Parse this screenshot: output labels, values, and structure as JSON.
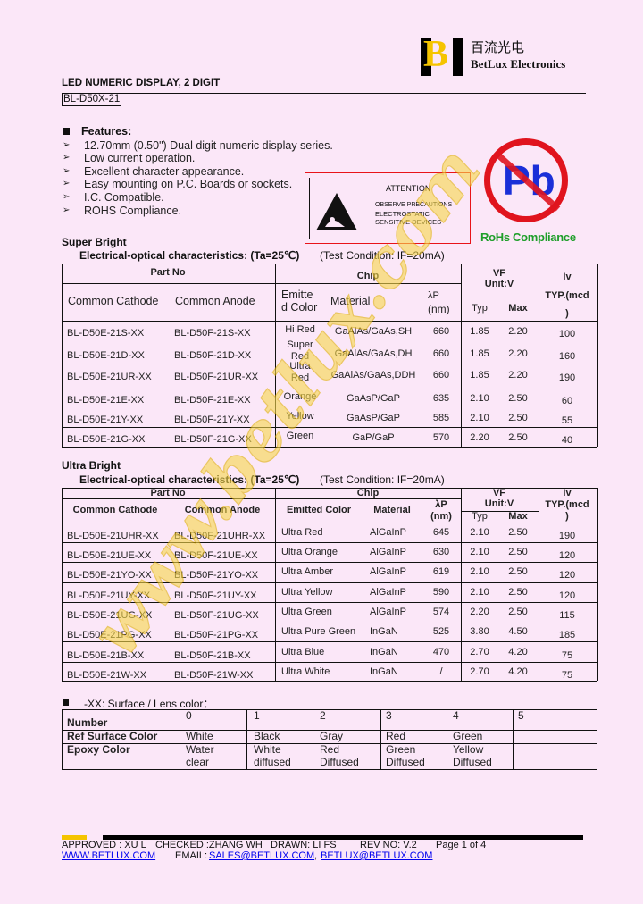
{
  "header": {
    "logo_letter": "B",
    "company_cn": "百流光电",
    "company_en": "BetLux Electronics",
    "doc_title": "LED NUMERIC DISPLAY, 2 DIGIT",
    "part_family": "BL-D50X-21"
  },
  "features": {
    "title": "Features:",
    "items": [
      "12.70mm (0.50\") Dual digit numeric display series.",
      "Low current operation.",
      "Excellent character appearance.",
      "Easy mounting on P.C. Boards or sockets.",
      "I.C. Compatible.",
      "ROHS Compliance."
    ]
  },
  "attention": {
    "title": "ATTENTION",
    "line1": "OBSERVE PRECAUTIONS",
    "line2": "ELECTROSTATIC",
    "line3": "SENSITIVE DEVICES"
  },
  "rohs": {
    "symbol": "Pb",
    "label": "RoHs Compliance"
  },
  "colors": {
    "background": "#fbe7f8",
    "logo_yellow": "#f5c400",
    "attention_border": "#e8141a",
    "pb_red": "#e0141e",
    "pb_blue": "#1a2fd8",
    "rohs_green": "#1e9e2a",
    "watermark": "#f2c400",
    "link": "#0000ee"
  },
  "super_bright": {
    "title": "Super Bright",
    "subtitle": "Electrical-optical characteristics: (Ta=25℃)",
    "condition": "(Test Condition: IF=20mA)",
    "headers": {
      "part_no": "Part No",
      "chip": "Chip",
      "vf": "VF",
      "vf_unit": "Unit:V",
      "iv": "Iv",
      "iv_unit": "TYP.(mcd",
      "iv_unit_end": ")",
      "cathode": "Common Cathode",
      "anode": "Common Anode",
      "emitted_1": "Emitte",
      "emitted_2": "d Color",
      "material": "Material",
      "lambda": "λP",
      "lambda_unit": "(nm)",
      "typ": "Typ",
      "max": "Max"
    },
    "rows": [
      {
        "cathode": "BL-D50E-21S-XX",
        "anode": "BL-D50F-21S-XX",
        "color": [
          "Hi Red"
        ],
        "material": "GaAlAs/GaAs,SH",
        "lambda": "660",
        "typ": "1.85",
        "max": "2.20",
        "iv": "100"
      },
      {
        "cathode": "BL-D50E-21D-XX",
        "anode": "BL-D50F-21D-XX",
        "color": [
          "Super",
          "Red"
        ],
        "material": "GaAlAs/GaAs,DH",
        "lambda": "660",
        "typ": "1.85",
        "max": "2.20",
        "iv": "160"
      },
      {
        "cathode": "BL-D50E-21UR-XX",
        "anode": "BL-D50F-21UR-XX",
        "color": [
          "Ultra",
          "Red"
        ],
        "material": "GaAlAs/GaAs,DDH",
        "lambda": "660",
        "typ": "1.85",
        "max": "2.20",
        "iv": "190"
      },
      {
        "cathode": "BL-D50E-21E-XX",
        "anode": "BL-D50F-21E-XX",
        "color": [
          "Orange"
        ],
        "material": "GaAsP/GaP",
        "lambda": "635",
        "typ": "2.10",
        "max": "2.50",
        "iv": "60"
      },
      {
        "cathode": "BL-D50E-21Y-XX",
        "anode": "BL-D50F-21Y-XX",
        "color": [
          "Yellow"
        ],
        "material": "GaAsP/GaP",
        "lambda": "585",
        "typ": "2.10",
        "max": "2.50",
        "iv": "55"
      },
      {
        "cathode": "BL-D50E-21G-XX",
        "anode": "BL-D50F-21G-XX",
        "color": [
          "Green"
        ],
        "material": "GaP/GaP",
        "lambda": "570",
        "typ": "2.20",
        "max": "2.50",
        "iv": "40"
      }
    ]
  },
  "ultra_bright": {
    "title": "Ultra Bright",
    "subtitle": "Electrical-optical characteristics: (Ta=25℃)",
    "condition": "(Test Condition: IF=20mA)",
    "headers": {
      "part_no": "Part No",
      "chip": "Chip",
      "vf": "VF",
      "vf_unit": "Unit:V",
      "iv": "Iv",
      "iv_unit": "TYP.(mcd",
      "iv_unit_end": ")",
      "cathode": "Common Cathode",
      "anode": "Common Anode",
      "emitted": "Emitted Color",
      "material": "Material",
      "lambda": "λP",
      "lambda_unit": "(nm)",
      "typ": "Typ",
      "max": "Max"
    },
    "rows": [
      {
        "cathode": "BL-D50E-21UHR-XX",
        "anode": "BL-D50F-21UHR-XX",
        "color": "Ultra Red",
        "material": "AlGaInP",
        "lambda": "645",
        "typ": "2.10",
        "max": "2.50",
        "iv": "190"
      },
      {
        "cathode": "BL-D50E-21UE-XX",
        "anode": "BL-D50F-21UE-XX",
        "color": "Ultra Orange",
        "material": "AlGaInP",
        "lambda": "630",
        "typ": "2.10",
        "max": "2.50",
        "iv": "120"
      },
      {
        "cathode": "BL-D50E-21YO-XX",
        "anode": "BL-D50F-21YO-XX",
        "color": "Ultra Amber",
        "material": "AlGaInP",
        "lambda": "619",
        "typ": "2.10",
        "max": "2.50",
        "iv": "120"
      },
      {
        "cathode": "BL-D50E-21UY-XX",
        "anode": "BL-D50F-21UY-XX",
        "color": "Ultra Yellow",
        "material": "AlGaInP",
        "lambda": "590",
        "typ": "2.10",
        "max": "2.50",
        "iv": "120"
      },
      {
        "cathode": "BL-D50E-21UG-XX",
        "anode": "BL-D50F-21UG-XX",
        "color": "Ultra Green",
        "material": "AlGaInP",
        "lambda": "574",
        "typ": "2.20",
        "max": "2.50",
        "iv": "115"
      },
      {
        "cathode": "BL-D50E-21PG-XX",
        "anode": "BL-D50F-21PG-XX",
        "color": "Ultra Pure Green",
        "material": "InGaN",
        "lambda": "525",
        "typ": "3.80",
        "max": "4.50",
        "iv": "185"
      },
      {
        "cathode": "BL-D50E-21B-XX",
        "anode": "BL-D50F-21B-XX",
        "color": "Ultra Blue",
        "material": "InGaN",
        "lambda": "470",
        "typ": "2.70",
        "max": "4.20",
        "iv": "75"
      },
      {
        "cathode": "BL-D50E-21W-XX",
        "anode": "BL-D50F-21W-XX",
        "color": "Ultra White",
        "material": "InGaN",
        "lambda": "/",
        "typ": "2.70",
        "max": "4.20",
        "iv": "75"
      }
    ]
  },
  "lens": {
    "title": "-XX: Surface / Lens color：",
    "row_labels": [
      "Number",
      "Ref Surface Color",
      "Epoxy Color"
    ],
    "numbers": [
      "0",
      "1",
      "2",
      "3",
      "4",
      "5"
    ],
    "surface": [
      "White",
      "Black",
      "Gray",
      "Red",
      "Green",
      ""
    ],
    "epoxy": [
      [
        "Water",
        "clear"
      ],
      [
        "White",
        "diffused"
      ],
      [
        "Red",
        "Diffused"
      ],
      [
        "Green",
        "Diffused"
      ],
      [
        "Yellow",
        "Diffused"
      ],
      [
        "",
        ""
      ]
    ]
  },
  "footer": {
    "approved": "APPROVED : XU L",
    "checked": "CHECKED :ZHANG WH",
    "drawn": "DRAWN: LI FS",
    "rev": "REV NO: V.2",
    "page": "Page 1 of 4",
    "website": "WWW.BETLUX.COM",
    "email_label": "EMAIL:",
    "email1": "SALES@BETLUX.COM",
    "sep": ",",
    "email2": "BETLUX@BETLUX.COM"
  },
  "watermark": "www.betlux.com"
}
